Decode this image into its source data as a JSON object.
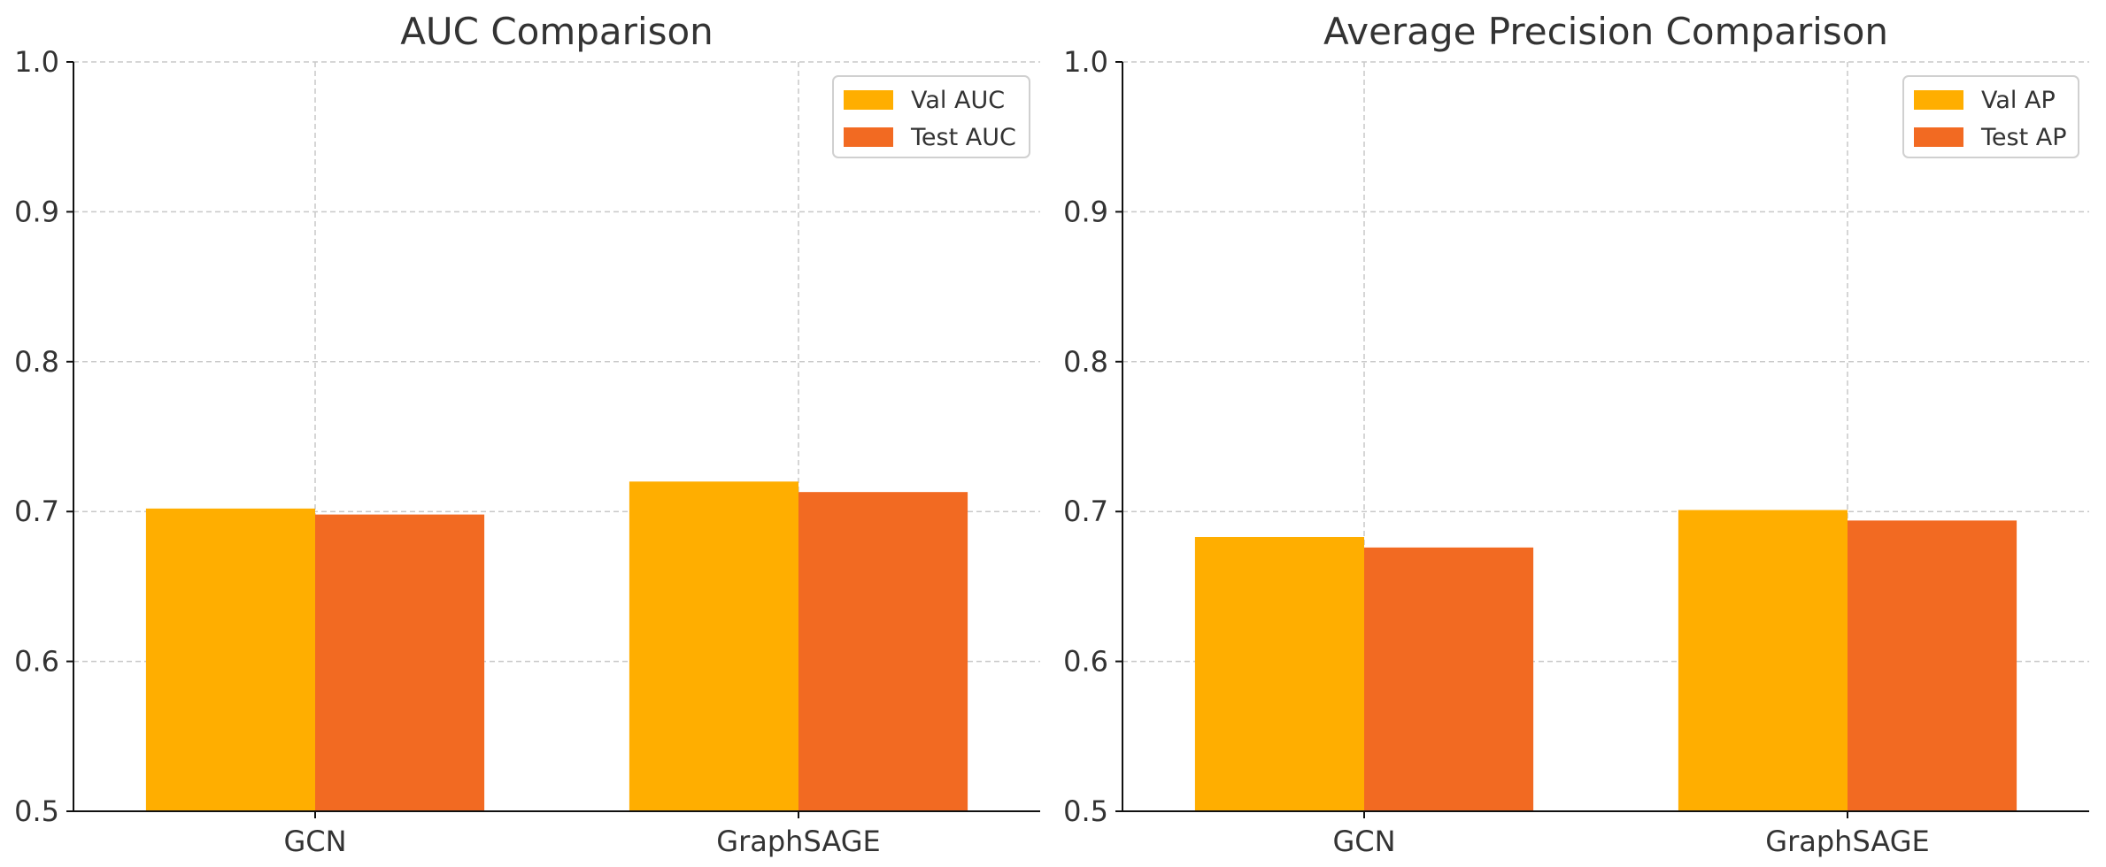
{
  "colors": {
    "val": "#FFAE00",
    "test": "#F26A22",
    "grid": "#C8C8C8",
    "axis": "#111111",
    "text": "#333333"
  },
  "chart_data": [
    {
      "type": "bar",
      "title": "AUC Comparison",
      "categories": [
        "GCN",
        "GraphSAGE"
      ],
      "series": [
        {
          "name": "Val AUC",
          "values": [
            0.702,
            0.72
          ]
        },
        {
          "name": "Test AUC",
          "values": [
            0.698,
            0.713
          ]
        }
      ],
      "ylim": [
        0.5,
        1.0
      ],
      "yticks": [
        "0.5",
        "0.6",
        "0.7",
        "0.8",
        "0.9",
        "1.0"
      ],
      "grid": true,
      "legend": "top-right"
    },
    {
      "type": "bar",
      "title": "Average Precision Comparison",
      "categories": [
        "GCN",
        "GraphSAGE"
      ],
      "series": [
        {
          "name": "Val AP",
          "values": [
            0.683,
            0.701
          ]
        },
        {
          "name": "Test AP",
          "values": [
            0.676,
            0.694
          ]
        }
      ],
      "ylim": [
        0.5,
        1.0
      ],
      "yticks": [
        "0.5",
        "0.6",
        "0.7",
        "0.8",
        "0.9",
        "1.0"
      ],
      "grid": true,
      "legend": "top-right"
    }
  ]
}
